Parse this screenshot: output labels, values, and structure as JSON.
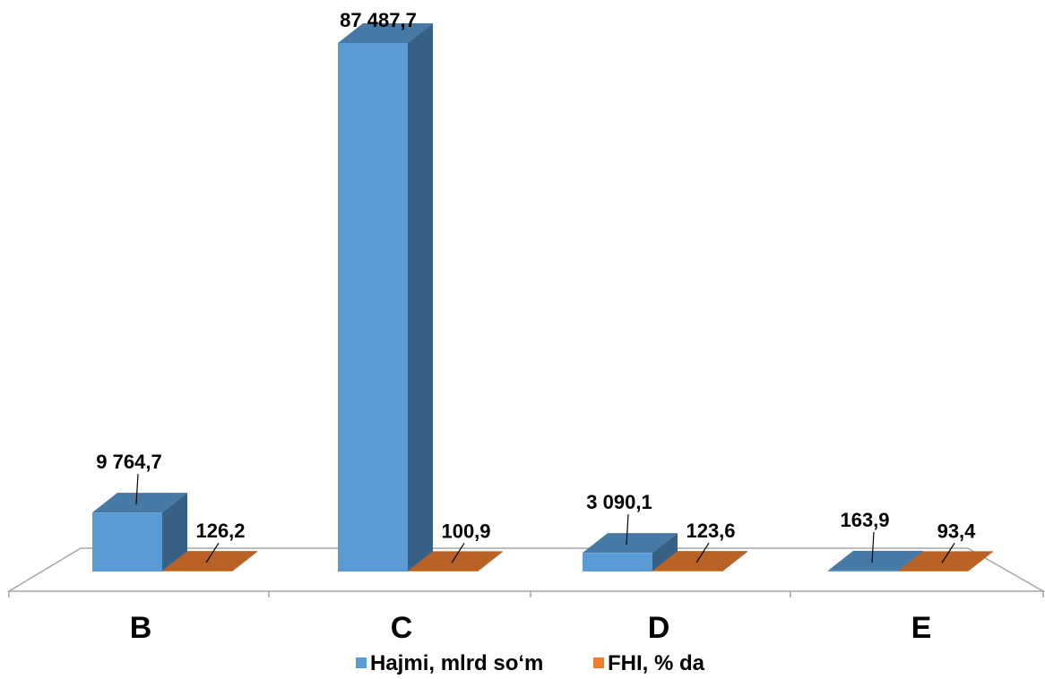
{
  "chart_data": {
    "type": "bar",
    "style": "3d-clustered-column",
    "categories": [
      "B",
      "C",
      "D",
      "E"
    ],
    "series": [
      {
        "name": "Hajmi, mlrd so‘m",
        "color": "#5B9BD5",
        "values": [
          9764.7,
          87487.7,
          3090.1,
          163.9
        ],
        "labels": [
          "9 764,7",
          "87 487,7",
          "3 090,1",
          "163,9"
        ]
      },
      {
        "name": "FHI, % da",
        "color": "#ED7D31",
        "values": [
          126.2,
          100.9,
          123.6,
          93.4
        ],
        "labels": [
          "126,2",
          "100,9",
          "123,6",
          "93,4"
        ]
      }
    ],
    "ylim": [
      0,
      87487.7
    ],
    "grid": false,
    "legend": "bottom-center",
    "title": "",
    "xlabel": "",
    "ylabel": ""
  }
}
